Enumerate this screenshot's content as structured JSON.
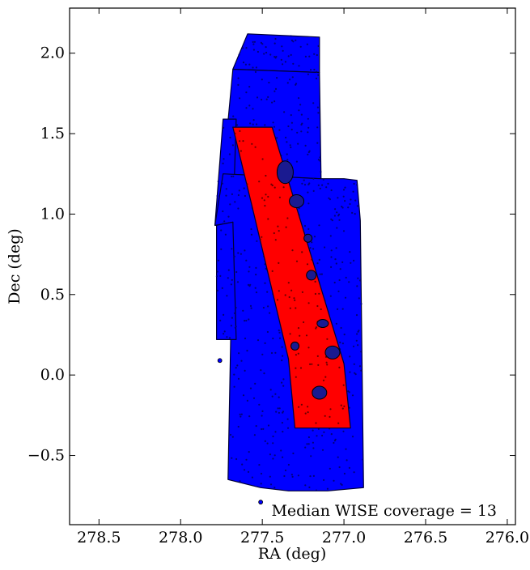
{
  "chart_data": {
    "type": "scatter",
    "title": "",
    "xlabel": "RA (deg)",
    "ylabel": "Dec (deg)",
    "xlim": [
      278.68,
      275.95
    ],
    "ylim": [
      -0.93,
      2.28
    ],
    "x_inverted": true,
    "xticks": [
      278.5,
      278.0,
      277.5,
      277.0,
      276.5,
      276.0
    ],
    "xtick_labels": [
      "278.5",
      "278.0",
      "277.5",
      "277.0",
      "276.5",
      "276.0"
    ],
    "yticks": [
      -0.5,
      0.0,
      0.5,
      1.0,
      1.5,
      2.0
    ],
    "ytick_labels": [
      "−0.5",
      "0.0",
      "0.5",
      "1.0",
      "1.5",
      "2.0"
    ],
    "grid": false,
    "legend": "none",
    "annotation": "Median WISE coverage = 13",
    "colors": {
      "wise_points": "#0000ff",
      "selected_points": "#ff0000",
      "marker_edge": "#000000"
    },
    "series": [
      {
        "color": "#0000ff",
        "regions": [
          {
            "corners": [
              [
                277.59,
                2.12
              ],
              [
                277.15,
                2.1
              ],
              [
                277.15,
                1.88
              ],
              [
                277.68,
                1.9
              ]
            ]
          },
          {
            "corners": [
              [
                277.68,
                1.9
              ],
              [
                277.15,
                1.88
              ],
              [
                277.14,
                1.22
              ],
              [
                277.74,
                1.25
              ]
            ]
          },
          {
            "corners": [
              [
                277.74,
                1.59
              ],
              [
                277.66,
                1.59
              ],
              [
                277.68,
                0.93
              ],
              [
                277.79,
                0.93
              ]
            ]
          },
          {
            "corners": [
              [
                277.74,
                1.25
              ],
              [
                277.15,
                1.22
              ],
              [
                277.0,
                1.22
              ],
              [
                276.92,
                1.21
              ],
              [
                276.9,
                0.96
              ],
              [
                276.88,
                -0.7
              ],
              [
                277.1,
                -0.72
              ],
              [
                277.34,
                -0.72
              ],
              [
                277.51,
                -0.7
              ],
              [
                277.71,
                -0.65
              ],
              [
                277.68,
                0.95
              ],
              [
                277.79,
                0.93
              ]
            ]
          },
          {
            "corners": [
              [
                277.78,
                0.93
              ],
              [
                277.68,
                0.95
              ],
              [
                277.66,
                0.22
              ],
              [
                277.78,
                0.22
              ]
            ]
          }
        ],
        "isolated_points": [
          [
            277.76,
            0.09
          ],
          [
            277.51,
            -0.79
          ]
        ]
      },
      {
        "color": "#ff0000",
        "regions": [
          {
            "corners": [
              [
                277.68,
                1.54
              ],
              [
                277.44,
                1.54
              ],
              [
                277.0,
                0.07
              ],
              [
                276.96,
                -0.33
              ],
              [
                277.3,
                -0.33
              ],
              [
                277.34,
                0.1
              ],
              [
                277.57,
                1.08
              ]
            ]
          }
        ]
      }
    ]
  }
}
